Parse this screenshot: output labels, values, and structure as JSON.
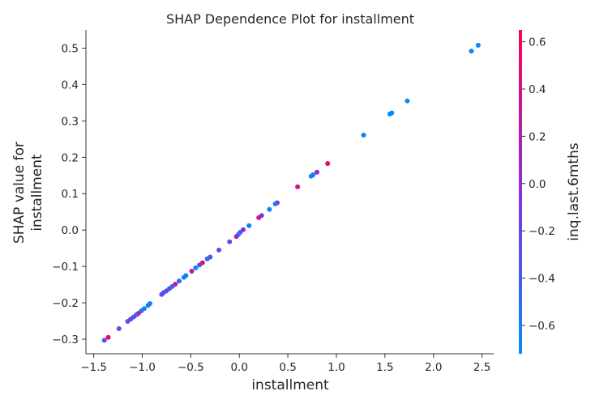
{
  "chart_data": {
    "type": "scatter",
    "title": "SHAP Dependence Plot for installment",
    "xlabel": "installment",
    "ylabel_lines": [
      "SHAP value for",
      "installment"
    ],
    "xlim": [
      -1.58,
      2.62
    ],
    "ylim": [
      -0.34,
      0.55
    ],
    "xticks": [
      -1.5,
      -1.0,
      -0.5,
      0.0,
      0.5,
      1.0,
      1.5,
      2.0,
      2.5
    ],
    "xtick_labels": [
      "−1.5",
      "−1.0",
      "−0.5",
      "0.0",
      "0.5",
      "1.0",
      "1.5",
      "2.0",
      "2.5"
    ],
    "yticks": [
      -0.3,
      -0.2,
      -0.1,
      0.0,
      0.1,
      0.2,
      0.3,
      0.4,
      0.5
    ],
    "ytick_labels": [
      "−0.3",
      "−0.2",
      "−0.1",
      "0.0",
      "0.1",
      "0.2",
      "0.3",
      "0.4",
      "0.5"
    ],
    "grid": false,
    "colorbar": {
      "label": "inq.last.6mths",
      "range": [
        -0.72,
        0.65
      ],
      "ticks": [
        -0.6,
        -0.4,
        -0.2,
        0.0,
        0.2,
        0.4,
        0.6
      ],
      "tick_labels": [
        "−0.6",
        "−0.4",
        "−0.2",
        "0.0",
        "0.2",
        "0.4",
        "0.6"
      ],
      "colors": [
        "#008bfb",
        "#8a2be2",
        "#ff0052"
      ]
    },
    "points": [
      {
        "x": 2.46,
        "y": 0.508,
        "c": -0.7
      },
      {
        "x": 2.39,
        "y": 0.492,
        "c": -0.7
      },
      {
        "x": 1.73,
        "y": 0.355,
        "c": -0.7
      },
      {
        "x": 1.57,
        "y": 0.322,
        "c": -0.7
      },
      {
        "x": 1.55,
        "y": 0.319,
        "c": -0.7
      },
      {
        "x": 1.28,
        "y": 0.261,
        "c": -0.7
      },
      {
        "x": 0.91,
        "y": 0.183,
        "c": 0.55
      },
      {
        "x": 0.8,
        "y": 0.159,
        "c": 0.0
      },
      {
        "x": 0.76,
        "y": 0.152,
        "c": -0.6
      },
      {
        "x": 0.74,
        "y": 0.148,
        "c": -0.7
      },
      {
        "x": 0.6,
        "y": 0.119,
        "c": 0.4
      },
      {
        "x": 0.39,
        "y": 0.075,
        "c": 0.2
      },
      {
        "x": 0.37,
        "y": 0.072,
        "c": -0.65
      },
      {
        "x": 0.31,
        "y": 0.057,
        "c": -0.7
      },
      {
        "x": 0.23,
        "y": 0.04,
        "c": -0.1
      },
      {
        "x": 0.2,
        "y": 0.034,
        "c": 0.35
      },
      {
        "x": 0.1,
        "y": 0.012,
        "c": -0.7
      },
      {
        "x": 0.04,
        "y": 0.001,
        "c": 0.0
      },
      {
        "x": 0.01,
        "y": -0.006,
        "c": -0.3
      },
      {
        "x": -0.01,
        "y": -0.012,
        "c": -0.6
      },
      {
        "x": -0.03,
        "y": -0.018,
        "c": 0.2
      },
      {
        "x": -0.1,
        "y": -0.032,
        "c": -0.3
      },
      {
        "x": -0.21,
        "y": -0.055,
        "c": -0.3
      },
      {
        "x": -0.3,
        "y": -0.074,
        "c": -0.3
      },
      {
        "x": -0.33,
        "y": -0.079,
        "c": -0.5
      },
      {
        "x": -0.38,
        "y": -0.09,
        "c": 0.5
      },
      {
        "x": -0.41,
        "y": -0.096,
        "c": -0.3
      },
      {
        "x": -0.45,
        "y": -0.104,
        "c": -0.65
      },
      {
        "x": -0.49,
        "y": -0.113,
        "c": 0.3
      },
      {
        "x": -0.55,
        "y": -0.125,
        "c": -0.7
      },
      {
        "x": -0.57,
        "y": -0.13,
        "c": -0.6
      },
      {
        "x": -0.62,
        "y": -0.14,
        "c": -0.5
      },
      {
        "x": -0.66,
        "y": -0.149,
        "c": 0.4
      },
      {
        "x": -0.69,
        "y": -0.155,
        "c": -0.4
      },
      {
        "x": -0.72,
        "y": -0.161,
        "c": -0.3
      },
      {
        "x": -0.75,
        "y": -0.167,
        "c": -0.3
      },
      {
        "x": -0.78,
        "y": -0.172,
        "c": -0.3
      },
      {
        "x": -0.8,
        "y": -0.177,
        "c": -0.3
      },
      {
        "x": -0.92,
        "y": -0.202,
        "c": -0.7
      },
      {
        "x": -0.94,
        "y": -0.207,
        "c": -0.6
      },
      {
        "x": -0.98,
        "y": -0.216,
        "c": -0.7
      },
      {
        "x": -1.01,
        "y": -0.222,
        "c": -0.5
      },
      {
        "x": -1.04,
        "y": -0.229,
        "c": 0.4
      },
      {
        "x": -1.06,
        "y": -0.233,
        "c": -0.3
      },
      {
        "x": -1.09,
        "y": -0.239,
        "c": -0.3
      },
      {
        "x": -1.12,
        "y": -0.245,
        "c": -0.3
      },
      {
        "x": -1.15,
        "y": -0.251,
        "c": -0.3
      },
      {
        "x": -1.24,
        "y": -0.271,
        "c": -0.3
      },
      {
        "x": -1.35,
        "y": -0.295,
        "c": 0.5
      },
      {
        "x": -1.39,
        "y": -0.303,
        "c": -0.3
      }
    ]
  }
}
